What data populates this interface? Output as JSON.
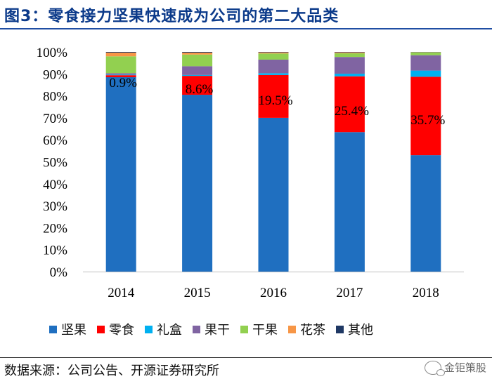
{
  "header": {
    "title": "图3：零食接力坚果快速成为公司的第二大品类"
  },
  "chart_data": {
    "type": "stacked-bar-percent",
    "title": "零食接力坚果快速成为公司的第二大品类",
    "categories": [
      "2014",
      "2015",
      "2016",
      "2017",
      "2018"
    ],
    "ylim": [
      0,
      100
    ],
    "yticks": [
      "0%",
      "10%",
      "20%",
      "30%",
      "40%",
      "50%",
      "60%",
      "70%",
      "80%",
      "90%",
      "100%"
    ],
    "series": [
      {
        "name": "坚果",
        "color": "#1f6fc0",
        "values": [
          88.5,
          80.5,
          70.0,
          63.5,
          53.0
        ]
      },
      {
        "name": "零食",
        "color": "#ff0000",
        "values": [
          0.9,
          8.6,
          19.5,
          25.4,
          35.7
        ]
      },
      {
        "name": "礼盒",
        "color": "#00b0f0",
        "values": [
          0.3,
          0.4,
          0.8,
          1.2,
          2.8
        ]
      },
      {
        "name": "果干",
        "color": "#8064a2",
        "values": [
          0.6,
          4.0,
          6.2,
          7.6,
          7.0
        ]
      },
      {
        "name": "干果",
        "color": "#92d050",
        "values": [
          7.7,
          5.3,
          2.8,
          1.7,
          1.3
        ]
      },
      {
        "name": "花茶",
        "color": "#f79646",
        "values": [
          1.7,
          0.9,
          0.5,
          0.4,
          0.1
        ]
      },
      {
        "name": "其他",
        "color": "#1f3864",
        "values": [
          0.3,
          0.3,
          0.2,
          0.2,
          0.1
        ]
      }
    ],
    "annotations": [
      "0.9%",
      "8.6%",
      "19.5%",
      "25.4%",
      "35.7%"
    ],
    "legend_position": "bottom"
  },
  "footer": {
    "source": "数据来源：公司公告、开源证券研究所",
    "watermark": "金钜策股"
  }
}
